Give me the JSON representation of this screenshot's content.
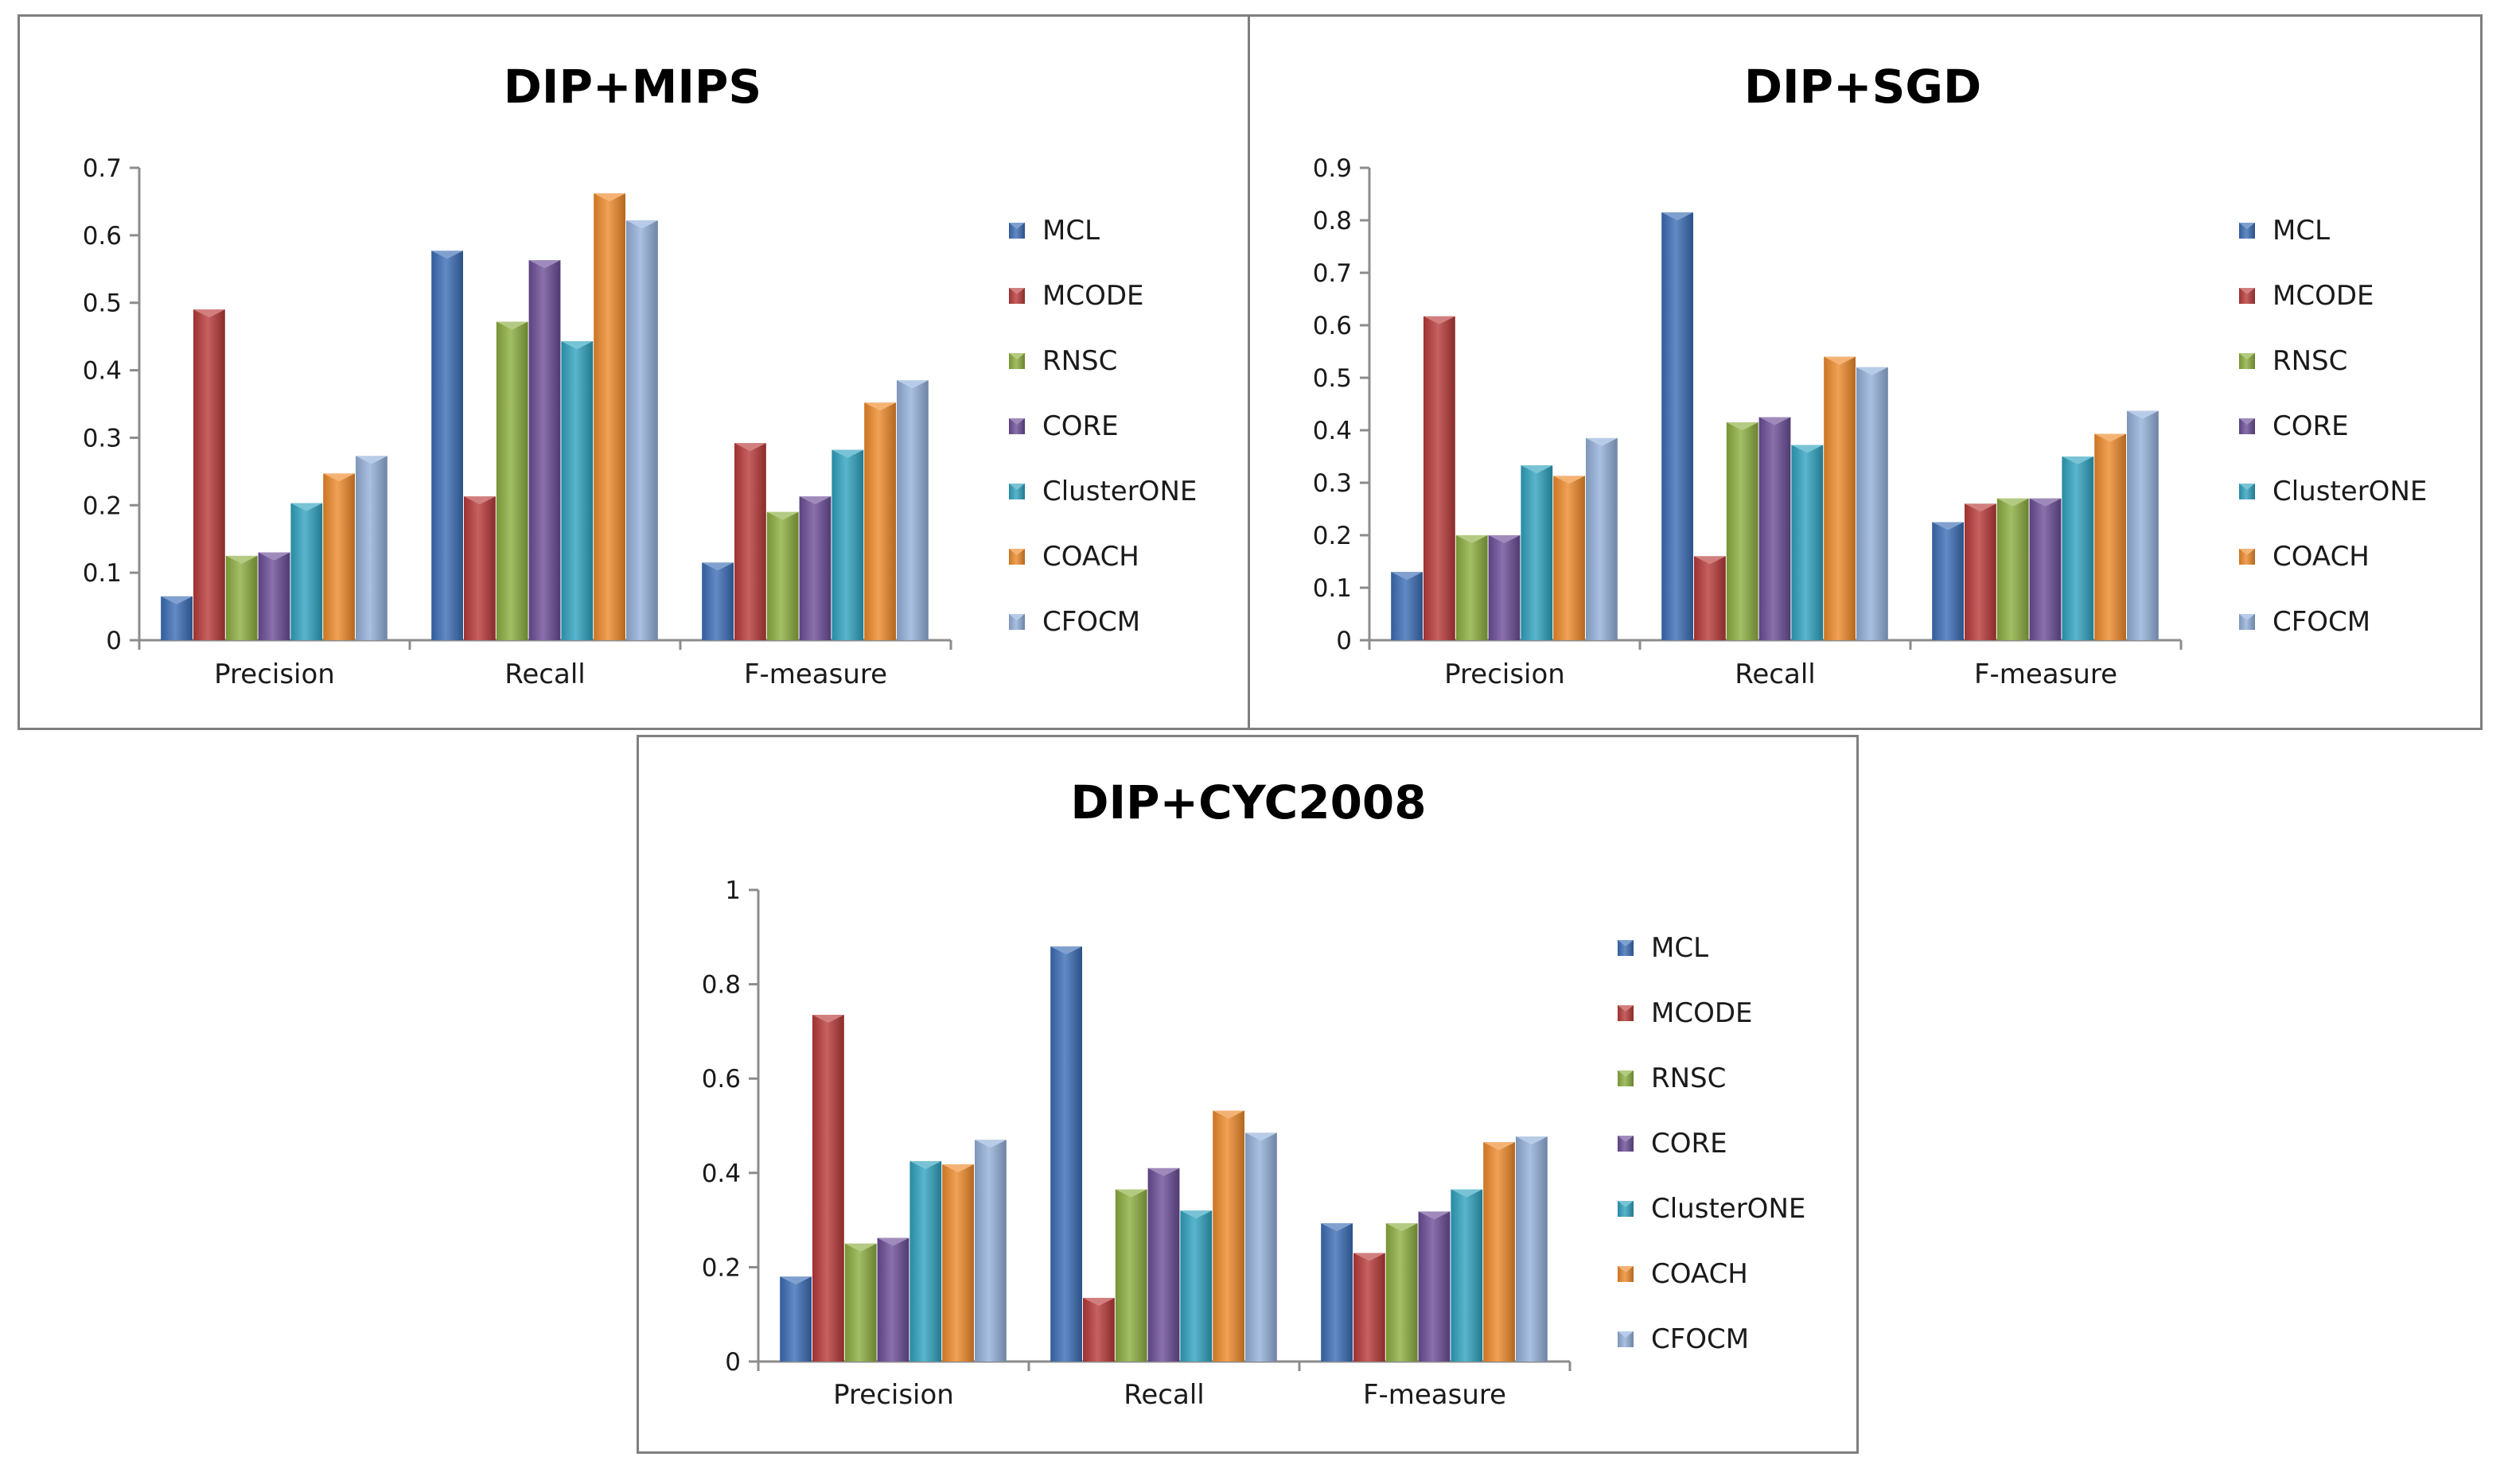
{
  "chart_data": [
    {
      "type": "bar",
      "title": "DIP+MIPS",
      "categories": [
        "Precision",
        "Recall",
        "F-measure"
      ],
      "ylim": [
        0,
        0.7
      ],
      "yticks": [
        "0",
        "0.1",
        "0.2",
        "0.3",
        "0.4",
        "0.5",
        "0.6",
        "0.7"
      ],
      "ytick_values": [
        0,
        0.1,
        0.2,
        0.3,
        0.4,
        0.5,
        0.6,
        0.7
      ],
      "xlabel": "",
      "ylabel": "",
      "grid": false,
      "legend": "right",
      "series": [
        {
          "name": "MCL",
          "color": "#3b6db5",
          "values": [
            0.065,
            0.577,
            0.115
          ]
        },
        {
          "name": "MCODE",
          "color": "#b83a38",
          "values": [
            0.49,
            0.213,
            0.292
          ]
        },
        {
          "name": "RNSC",
          "color": "#8cae3f",
          "values": [
            0.125,
            0.472,
            0.19
          ]
        },
        {
          "name": "CORE",
          "color": "#6b4d97",
          "values": [
            0.13,
            0.563,
            0.213
          ]
        },
        {
          "name": "ClusterONE",
          "color": "#2fa2bf",
          "values": [
            0.203,
            0.443,
            0.282
          ]
        },
        {
          "name": "COACH",
          "color": "#ee8a2a",
          "values": [
            0.247,
            0.662,
            0.352
          ]
        },
        {
          "name": "CFOCM",
          "color": "#94b0da",
          "values": [
            0.273,
            0.622,
            0.385
          ]
        }
      ]
    },
    {
      "type": "bar",
      "title": "DIP+SGD",
      "categories": [
        "Precision",
        "Recall",
        "F-measure"
      ],
      "ylim": [
        0,
        0.9
      ],
      "yticks": [
        "0",
        "0.1",
        "0.2",
        "0.3",
        "0.4",
        "0.5",
        "0.6",
        "0.7",
        "0.8",
        "0.9"
      ],
      "ytick_values": [
        0,
        0.1,
        0.2,
        0.3,
        0.4,
        0.5,
        0.6,
        0.7,
        0.8,
        0.9
      ],
      "xlabel": "",
      "ylabel": "",
      "grid": false,
      "legend": "right",
      "series": [
        {
          "name": "MCL",
          "color": "#3b6db5",
          "values": [
            0.13,
            0.815,
            0.225
          ]
        },
        {
          "name": "MCODE",
          "color": "#b83a38",
          "values": [
            0.617,
            0.16,
            0.26
          ]
        },
        {
          "name": "RNSC",
          "color": "#8cae3f",
          "values": [
            0.2,
            0.415,
            0.27
          ]
        },
        {
          "name": "CORE",
          "color": "#6b4d97",
          "values": [
            0.2,
            0.425,
            0.27
          ]
        },
        {
          "name": "ClusterONE",
          "color": "#2fa2bf",
          "values": [
            0.333,
            0.372,
            0.35
          ]
        },
        {
          "name": "COACH",
          "color": "#ee8a2a",
          "values": [
            0.313,
            0.54,
            0.393
          ]
        },
        {
          "name": "CFOCM",
          "color": "#94b0da",
          "values": [
            0.385,
            0.52,
            0.437
          ]
        }
      ]
    },
    {
      "type": "bar",
      "title": "DIP+CYC2008",
      "categories": [
        "Precision",
        "Recall",
        "F-measure"
      ],
      "ylim": [
        0,
        1
      ],
      "yticks": [
        "0",
        "0.2",
        "0.4",
        "0.6",
        "0.8",
        "1"
      ],
      "ytick_values": [
        0,
        0.2,
        0.4,
        0.6,
        0.8,
        1
      ],
      "xlabel": "",
      "ylabel": "",
      "grid": false,
      "legend": "right",
      "series": [
        {
          "name": "MCL",
          "color": "#3b6db5",
          "values": [
            0.18,
            0.88,
            0.293
          ]
        },
        {
          "name": "MCODE",
          "color": "#b83a38",
          "values": [
            0.735,
            0.135,
            0.23
          ]
        },
        {
          "name": "RNSC",
          "color": "#8cae3f",
          "values": [
            0.25,
            0.365,
            0.293
          ]
        },
        {
          "name": "CORE",
          "color": "#6b4d97",
          "values": [
            0.262,
            0.41,
            0.318
          ]
        },
        {
          "name": "ClusterONE",
          "color": "#2fa2bf",
          "values": [
            0.425,
            0.32,
            0.365
          ]
        },
        {
          "name": "COACH",
          "color": "#ee8a2a",
          "values": [
            0.418,
            0.532,
            0.465
          ]
        },
        {
          "name": "CFOCM",
          "color": "#94b0da",
          "values": [
            0.47,
            0.485,
            0.477
          ]
        }
      ]
    }
  ]
}
